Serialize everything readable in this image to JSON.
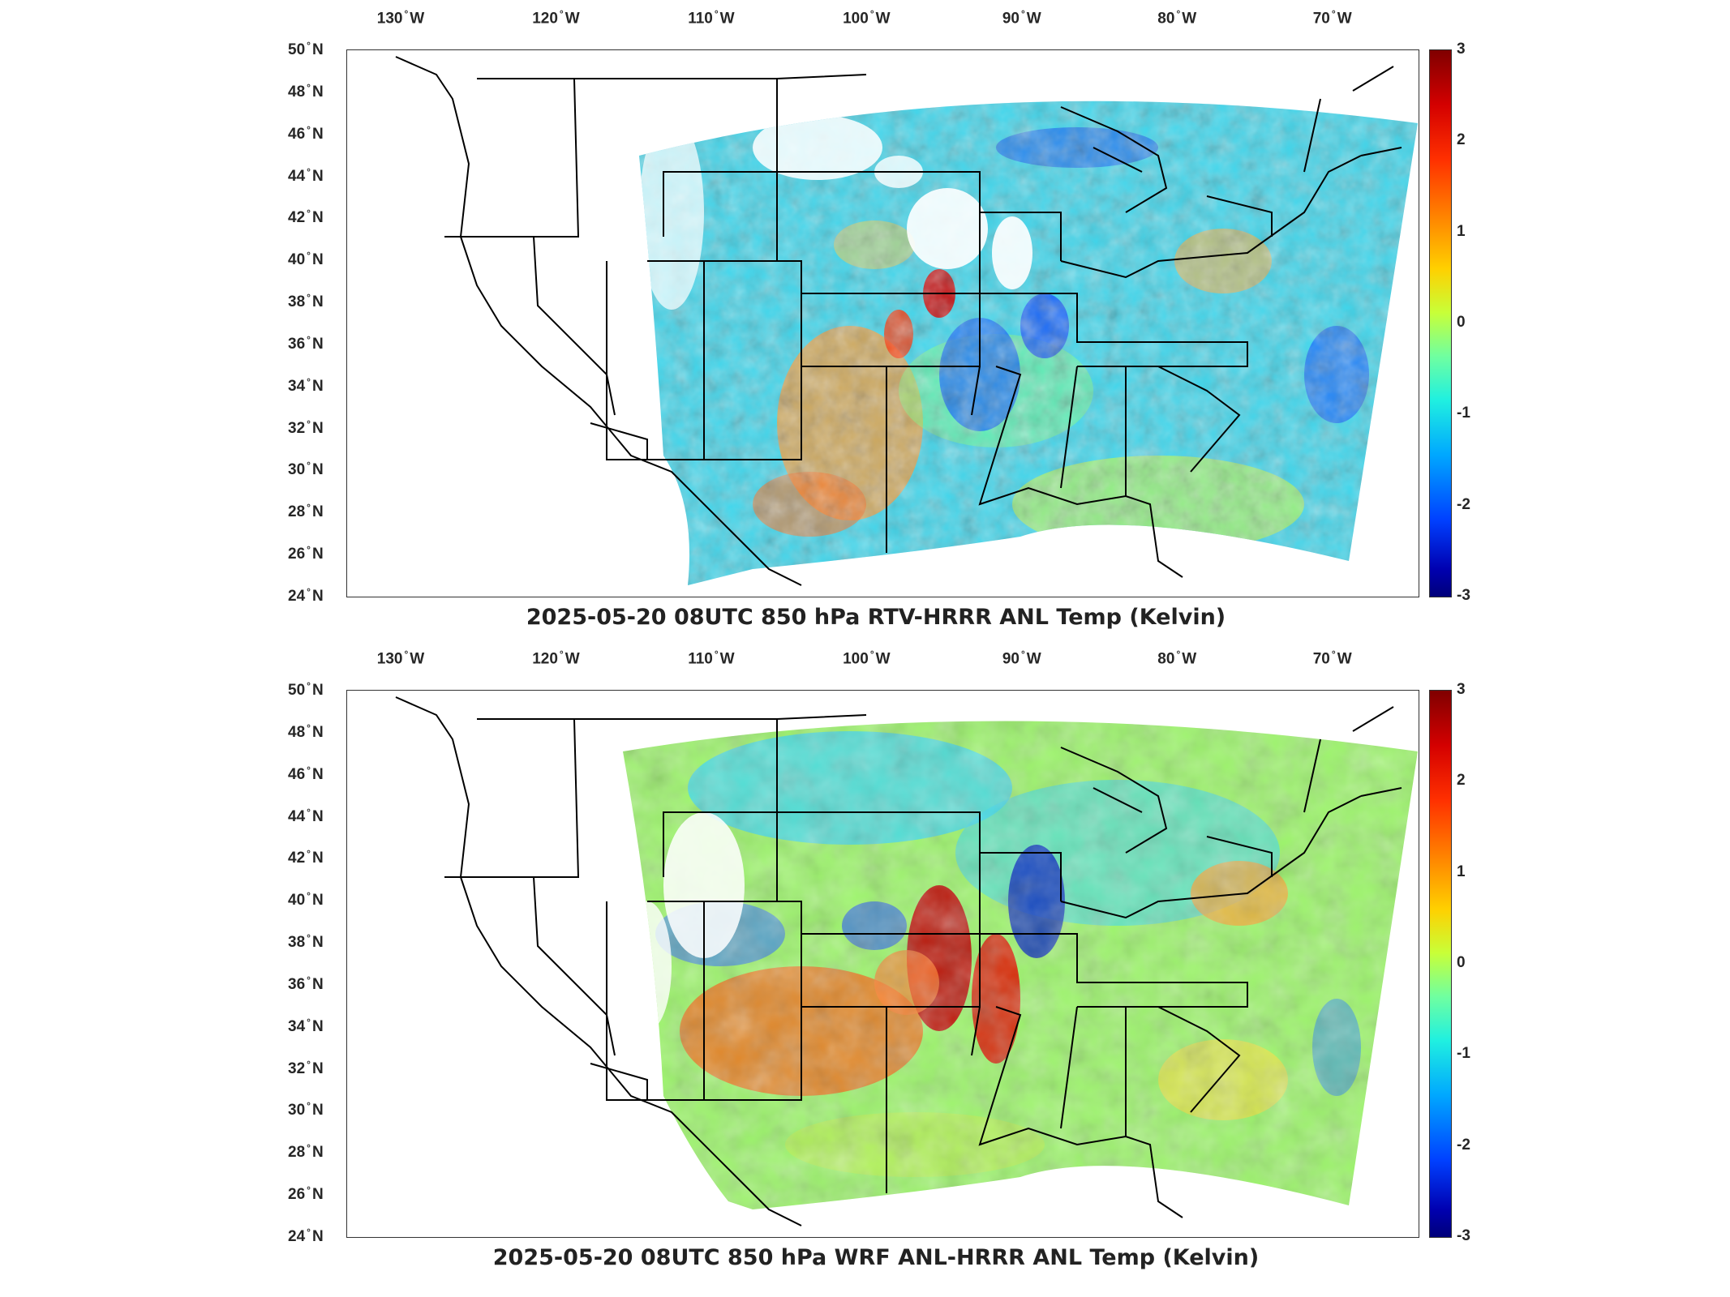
{
  "panels": [
    {
      "id": "top",
      "title": "2025-05-20 08UTC 850 hPa RTV-HRRR ANL Temp (Kelvin)",
      "field": "rtv-hrrr"
    },
    {
      "id": "bottom",
      "title": "2025-05-20 08UTC 850 hPa WRF ANL-HRRR ANL Temp (Kelvin)",
      "field": "wrf-hrrr"
    }
  ],
  "lon_ticks": [
    {
      "value": -130,
      "num": "130",
      "hem": "W"
    },
    {
      "value": -120,
      "num": "120",
      "hem": "W"
    },
    {
      "value": -110,
      "num": "110",
      "hem": "W"
    },
    {
      "value": -100,
      "num": "100",
      "hem": "W"
    },
    {
      "value": -90,
      "num": "90",
      "hem": "W"
    },
    {
      "value": -80,
      "num": "80",
      "hem": "W"
    },
    {
      "value": -70,
      "num": "70",
      "hem": "W"
    }
  ],
  "lat_ticks": [
    {
      "value": 50,
      "num": "50",
      "hem": "N"
    },
    {
      "value": 48,
      "num": "48",
      "hem": "N"
    },
    {
      "value": 46,
      "num": "46",
      "hem": "N"
    },
    {
      "value": 44,
      "num": "44",
      "hem": "N"
    },
    {
      "value": 42,
      "num": "42",
      "hem": "N"
    },
    {
      "value": 40,
      "num": "40",
      "hem": "N"
    },
    {
      "value": 38,
      "num": "38",
      "hem": "N"
    },
    {
      "value": 36,
      "num": "36",
      "hem": "N"
    },
    {
      "value": 34,
      "num": "34",
      "hem": "N"
    },
    {
      "value": 32,
      "num": "32",
      "hem": "N"
    },
    {
      "value": 30,
      "num": "30",
      "hem": "N"
    },
    {
      "value": 28,
      "num": "28",
      "hem": "N"
    },
    {
      "value": 26,
      "num": "26",
      "hem": "N"
    },
    {
      "value": 24,
      "num": "24",
      "hem": "N"
    }
  ],
  "colorbar": {
    "ticks": [
      "3",
      "2",
      "1",
      "0",
      "-1",
      "-2",
      "-3"
    ],
    "range": [
      -3,
      3
    ],
    "colormap": "jet"
  }
}
